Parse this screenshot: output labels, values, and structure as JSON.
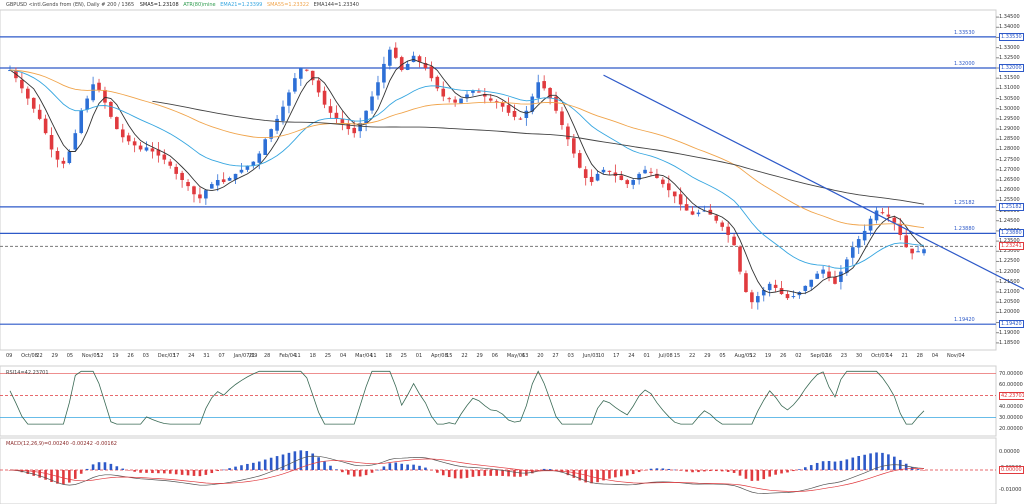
{
  "header": {
    "main": "GBPUSD <intl.Gends from (EN), Daily #  200 / 1365",
    "sma5": "SMA5=1.23108",
    "atr": "ATR(80)mine",
    "ema21": "EMA21=1.23399",
    "sma55": "SMA55=1.23322",
    "ema144": "EMA144=1.23340",
    "rsi": "RSI14=42.23701",
    "macd": "MACD(12,26,9)=0.00240 -0.00242 -0.00162"
  },
  "colors": {
    "up": "#2d6fd6",
    "down": "#e03a3e",
    "level": "#2d59c8",
    "ema_fast": "#36a6e0",
    "ema_mid": "#f0a44b",
    "ema_slow": "#444444",
    "rsi": "#3a6a55",
    "macd_hist_up": "#2d59c8",
    "macd_hist_dn": "#e03a3e"
  },
  "y_labels": [
    "1.34500",
    "1.34000",
    "1.33500",
    "1.33000",
    "1.32500",
    "1.32000",
    "1.31500",
    "1.31000",
    "1.30500",
    "1.30000",
    "1.29500",
    "1.29000",
    "1.28500",
    "1.28000",
    "1.27500",
    "1.27000",
    "1.26500",
    "1.26000",
    "1.25500",
    "1.25000",
    "1.24500",
    "1.24000",
    "1.23500",
    "1.23000",
    "1.22500",
    "1.22000",
    "1.21500",
    "1.21000",
    "1.20500",
    "1.20000",
    "1.19500",
    "1.19000",
    "1.18500"
  ],
  "levels": [
    {
      "value": 1.3353,
      "label": "1.33530"
    },
    {
      "value": 1.32,
      "label": "1.32000"
    },
    {
      "value": 1.2518,
      "label": "1.25182"
    },
    {
      "value": 1.2388,
      "label": "1.23880"
    },
    {
      "value": 1.1942,
      "label": "1.19420"
    }
  ],
  "current_price": {
    "value": 1.23241,
    "label": "1.23241"
  },
  "trendline": {
    "start_index": 100,
    "start_price": 1.3165,
    "end_index": 188,
    "end_price": 1.186
  },
  "x_labels": [
    "09",
    "Oct/08",
    "22",
    "29",
    "05",
    "Nov/05",
    "12",
    "19",
    "26",
    "03",
    "Dec/03",
    "17",
    "24",
    "31",
    "07",
    "Jan/07/19",
    "21",
    "28",
    "Feb/04",
    "11",
    "18",
    "25",
    "04",
    "Mar/04",
    "11",
    "18",
    "25",
    "01",
    "Apr/08",
    "15",
    "22",
    "29",
    "06",
    "May/06",
    "13",
    "20",
    "27",
    "03",
    "Jun/03",
    "10",
    "17",
    "24",
    "01",
    "Jul/08",
    "15",
    "22",
    "29",
    "05",
    "Aug/05",
    "12",
    "19",
    "26",
    "02",
    "Sep/02",
    "16",
    "23",
    "30",
    "Oct/07",
    "14",
    "21",
    "28",
    "04",
    "Nov/04"
  ],
  "rsi_labels": [
    "70.00000",
    "60.00000",
    "50.00000",
    "40.00000",
    "30.00000",
    "20.00000"
  ],
  "rsi_current": "42.23701",
  "macd_labels": [
    "0.00000",
    "-0.00500",
    "-0.01000"
  ],
  "macd_current": "0.00000",
  "price_data": {
    "start_close": 1.319,
    "closes": [
      1.319,
      1.315,
      1.31,
      1.305,
      1.3,
      1.295,
      1.288,
      1.28,
      1.275,
      1.273,
      1.279,
      1.288,
      1.299,
      1.305,
      1.312,
      1.309,
      1.303,
      1.296,
      1.29,
      1.286,
      1.284,
      1.282,
      1.28,
      1.281,
      1.279,
      1.277,
      1.275,
      1.272,
      1.268,
      1.265,
      1.262,
      1.258,
      1.256,
      1.26,
      1.263,
      1.265,
      1.264,
      1.266,
      1.268,
      1.27,
      1.272,
      1.274,
      1.278,
      1.285,
      1.29,
      1.295,
      1.301,
      1.308,
      1.315,
      1.32,
      1.319,
      1.314,
      1.308,
      1.302,
      1.298,
      1.295,
      1.293,
      1.29,
      1.288,
      1.293,
      1.299,
      1.306,
      1.313,
      1.322,
      1.329,
      1.325,
      1.319,
      1.322,
      1.326,
      1.323,
      1.32,
      1.315,
      1.31,
      1.306,
      1.305,
      1.303,
      1.305,
      1.307,
      1.309,
      1.308,
      1.306,
      1.304,
      1.303,
      1.301,
      1.298,
      1.296,
      1.295,
      1.299,
      1.306,
      1.313,
      1.31,
      1.305,
      1.299,
      1.292,
      1.285,
      1.278,
      1.271,
      1.266,
      1.264,
      1.268,
      1.27,
      1.269,
      1.267,
      1.265,
      1.263,
      1.265,
      1.268,
      1.27,
      1.269,
      1.266,
      1.263,
      1.26,
      1.257,
      1.253,
      1.25,
      1.248,
      1.249,
      1.25,
      1.248,
      1.245,
      1.242,
      1.238,
      1.233,
      1.22,
      1.21,
      1.205,
      1.208,
      1.211,
      1.214,
      1.212,
      1.209,
      1.207,
      1.208,
      1.21,
      1.213,
      1.216,
      1.219,
      1.221,
      1.217,
      1.214,
      1.22,
      1.226,
      1.232,
      1.236,
      1.24,
      1.246,
      1.25,
      1.249,
      1.247,
      1.244,
      1.238,
      1.232,
      1.229,
      1.23,
      1.231
    ]
  }
}
